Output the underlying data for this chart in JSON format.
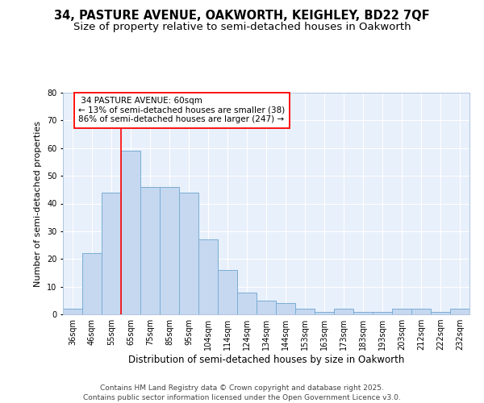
{
  "title_line1": "34, PASTURE AVENUE, OAKWORTH, KEIGHLEY, BD22 7QF",
  "title_line2": "Size of property relative to semi-detached houses in Oakworth",
  "xlabel": "Distribution of semi-detached houses by size in Oakworth",
  "ylabel": "Number of semi-detached properties",
  "categories": [
    "36sqm",
    "46sqm",
    "55sqm",
    "65sqm",
    "75sqm",
    "85sqm",
    "95sqm",
    "104sqm",
    "114sqm",
    "124sqm",
    "134sqm",
    "144sqm",
    "153sqm",
    "163sqm",
    "173sqm",
    "183sqm",
    "193sqm",
    "203sqm",
    "212sqm",
    "222sqm",
    "232sqm"
  ],
  "values": [
    2,
    22,
    44,
    59,
    46,
    46,
    44,
    27,
    16,
    8,
    5,
    4,
    2,
    1,
    2,
    1,
    1,
    2,
    2,
    1,
    2
  ],
  "bar_color": "#c5d8f0",
  "bar_edge_color": "#7aadd4",
  "background_color": "#e8f0fb",
  "grid_color": "#ffffff",
  "property_label": "34 PASTURE AVENUE: 60sqm",
  "pct_smaller": 13,
  "count_smaller": 38,
  "pct_larger": 86,
  "count_larger": 247,
  "redline_bin_index": 2,
  "ylim": [
    0,
    80
  ],
  "yticks": [
    0,
    10,
    20,
    30,
    40,
    50,
    60,
    70,
    80
  ],
  "footer": "Contains HM Land Registry data © Crown copyright and database right 2025.\nContains public sector information licensed under the Open Government Licence v3.0.",
  "title_fontsize": 10.5,
  "subtitle_fontsize": 9.5,
  "xlabel_fontsize": 8.5,
  "ylabel_fontsize": 8,
  "tick_fontsize": 7,
  "footer_fontsize": 6.5,
  "annot_fontsize": 7.5
}
